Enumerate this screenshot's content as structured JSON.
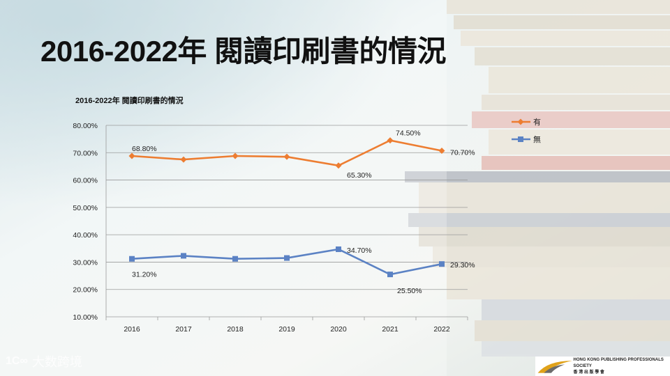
{
  "slide": {
    "title": "2016-2022年 閱讀印刷書的情況",
    "watermark": "大数跨境",
    "watermark_mark": "1C∞",
    "publisher_en": "HONG KONG PUBLISHING PROFESSIONALS SOCIETY",
    "publisher_zh": "香 港 出 版 學 會"
  },
  "colors": {
    "yes": "#ED7D31",
    "no": "#5B82C4"
  },
  "chart_data": {
    "type": "line",
    "title": "2016-2022年 閱讀印刷書的情況",
    "categories": [
      "2016",
      "2017",
      "2018",
      "2019",
      "2020",
      "2021",
      "2022"
    ],
    "ylim": [
      10,
      80
    ],
    "yticks": [
      "10.00%",
      "20.00%",
      "30.00%",
      "40.00%",
      "50.00%",
      "60.00%",
      "70.00%",
      "80.00%"
    ],
    "grid": true,
    "legend_position": "top-right",
    "series": [
      {
        "name": "有",
        "marker": "diamond",
        "values": [
          68.8,
          67.5,
          68.8,
          68.5,
          65.3,
          74.5,
          70.7
        ],
        "labels": [
          "68.80%",
          "",
          "",
          "",
          "65.30%",
          "74.50%",
          "70.70%"
        ]
      },
      {
        "name": "無",
        "marker": "square",
        "values": [
          31.2,
          32.3,
          31.2,
          31.5,
          34.7,
          25.5,
          29.3
        ],
        "labels": [
          "31.20%",
          "",
          "",
          "",
          "34.70%",
          "25.50%",
          "29.30%"
        ]
      }
    ]
  }
}
